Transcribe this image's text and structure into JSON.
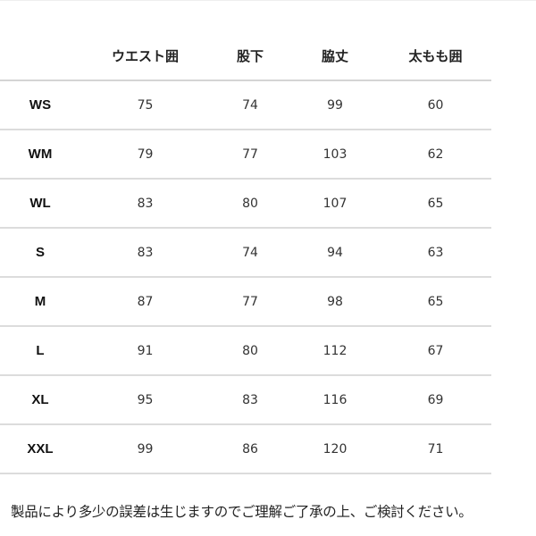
{
  "table": {
    "headers": [
      "",
      "ウエスト囲",
      "股下",
      "脇丈",
      "太もも囲"
    ],
    "rows": [
      [
        "WS",
        "75",
        "74",
        "99",
        "60"
      ],
      [
        "WM",
        "79",
        "77",
        "103",
        "62"
      ],
      [
        "WL",
        "83",
        "80",
        "107",
        "65"
      ],
      [
        "S",
        "83",
        "74",
        "94",
        "63"
      ],
      [
        "M",
        "87",
        "77",
        "98",
        "65"
      ],
      [
        "L",
        "91",
        "80",
        "112",
        "67"
      ],
      [
        "XL",
        "95",
        "83",
        "116",
        "69"
      ],
      [
        "XXL",
        "99",
        "86",
        "120",
        "71"
      ]
    ]
  },
  "note": "製品により多少の誤差は生じますのでご理解ご了承の上、ご検討ください。"
}
